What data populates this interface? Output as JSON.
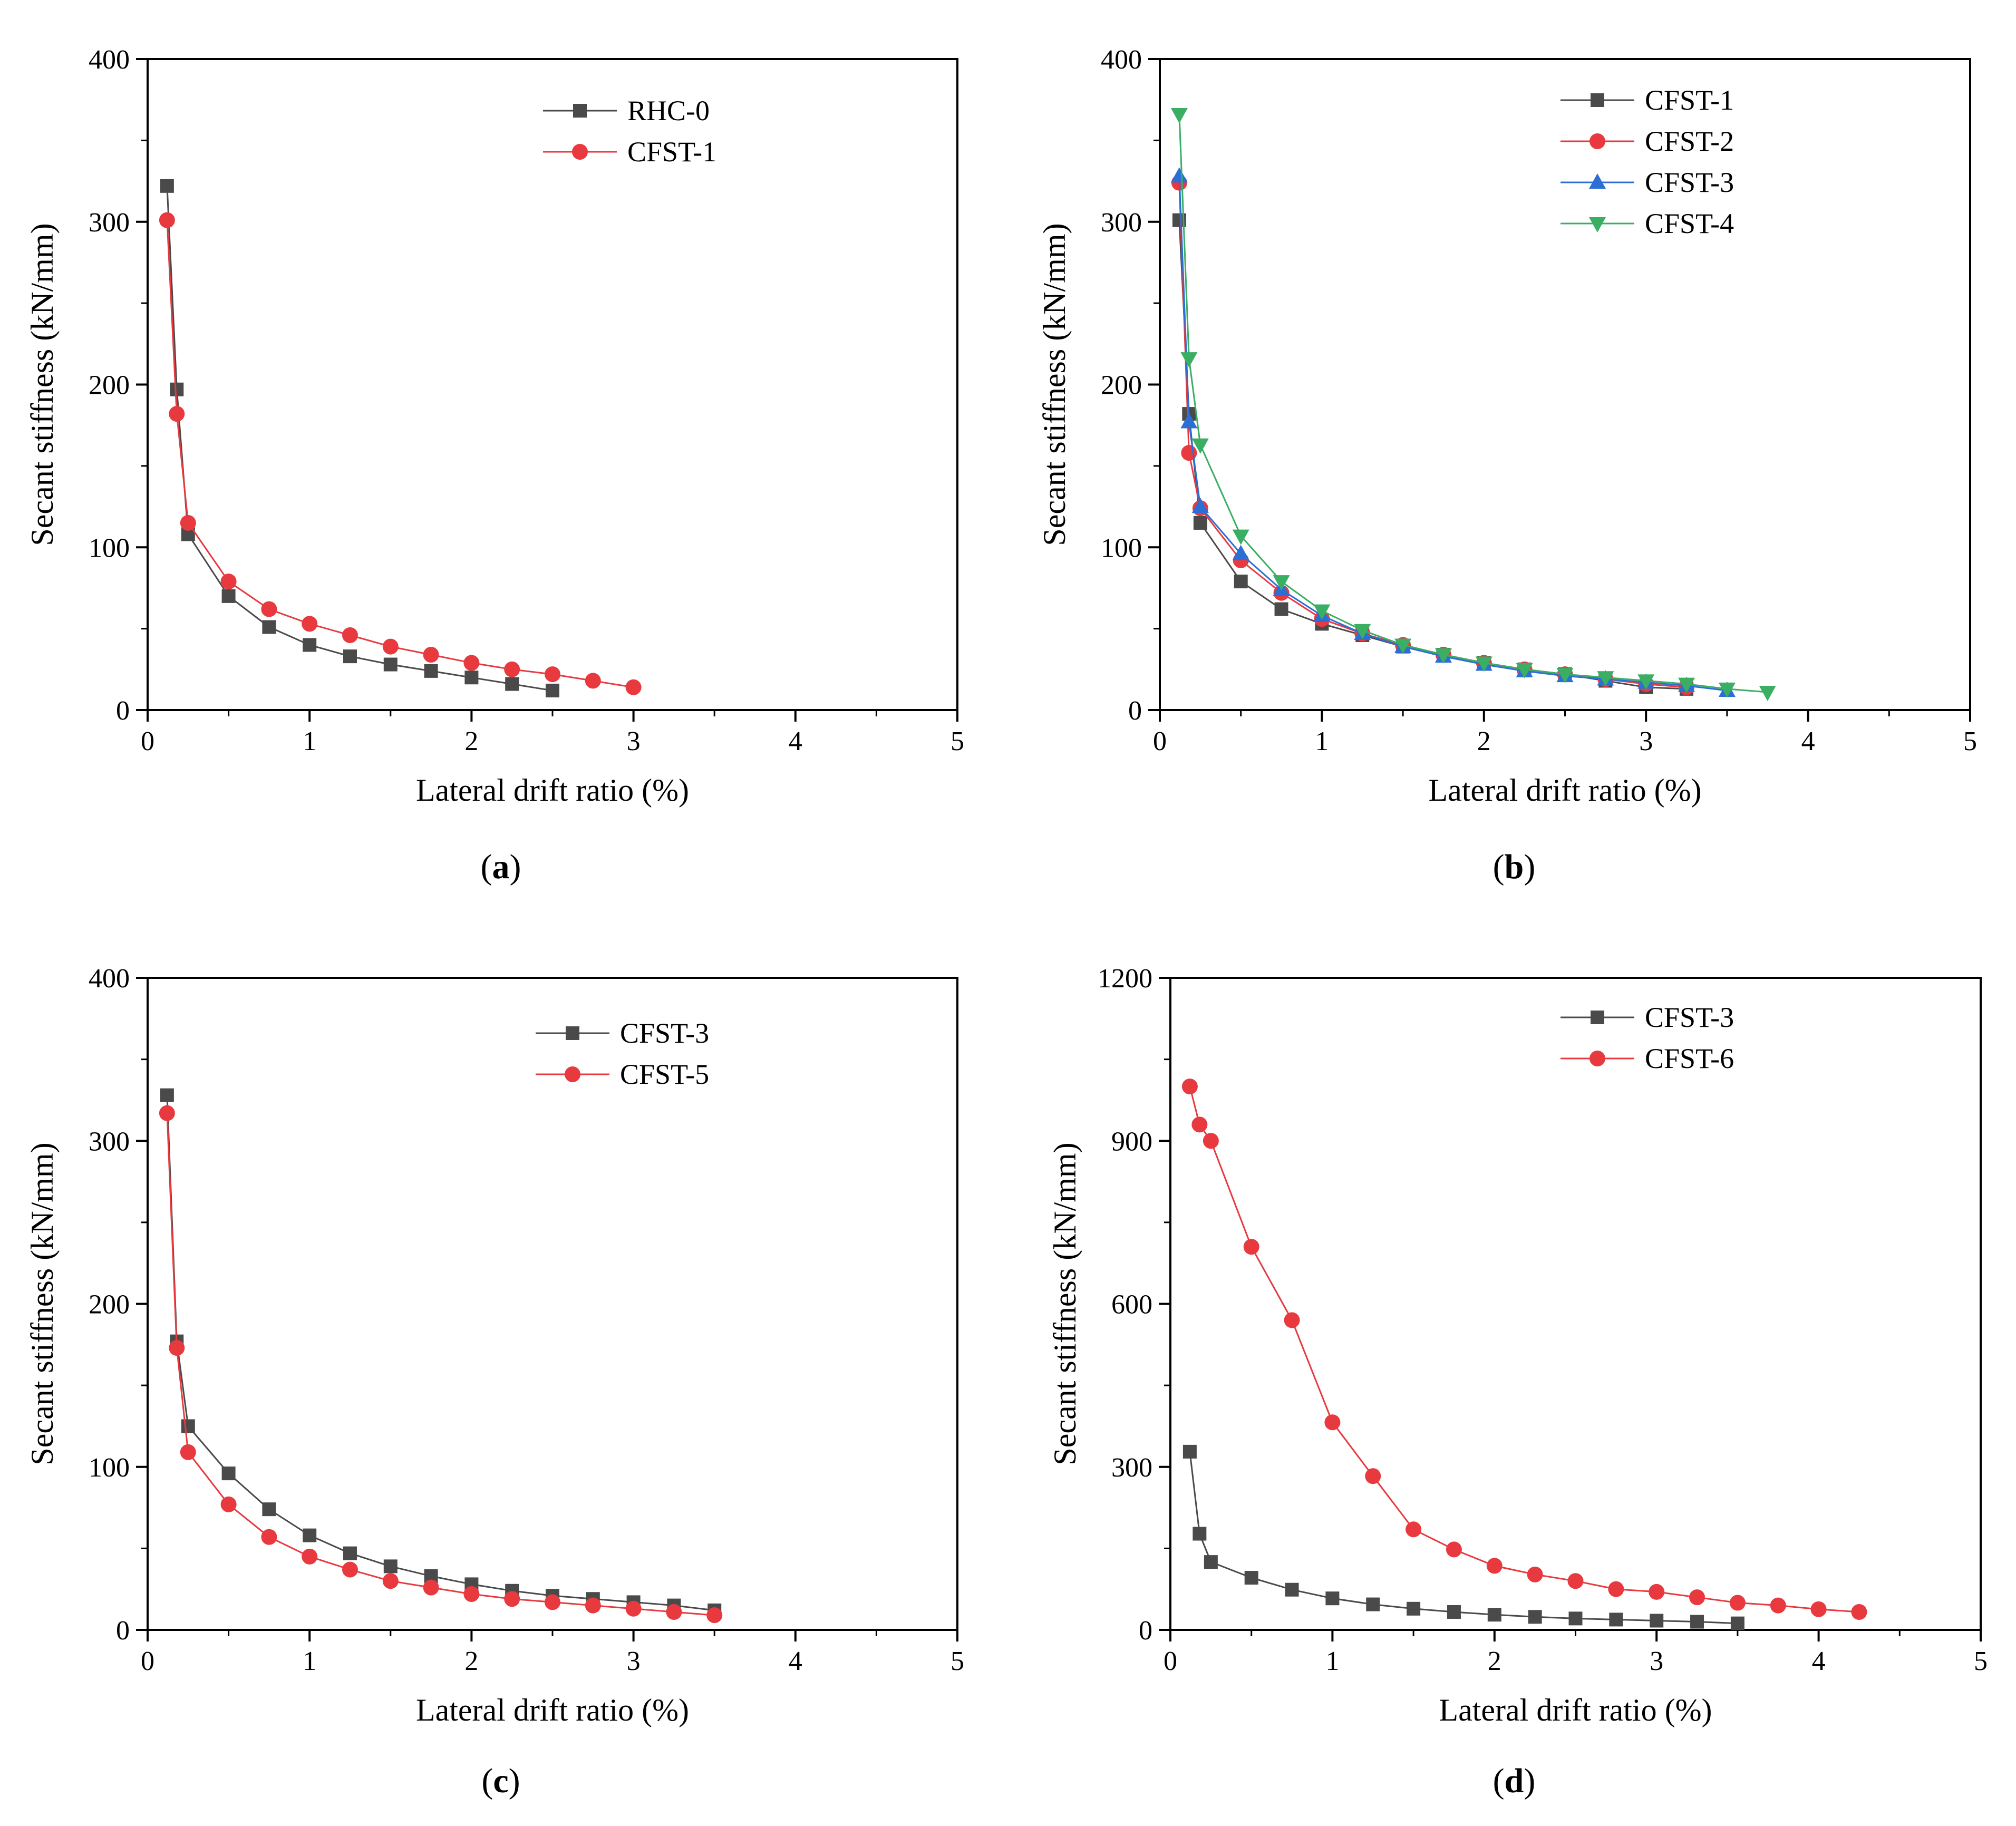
{
  "figure_title": "Secant stiffness vs lateral drift ratio",
  "colors": {
    "black": "#4a4a4a",
    "red": "#e8393f",
    "blue": "#2b6fd6",
    "green": "#3aae62"
  },
  "chart_data": [
    {
      "type": "line",
      "panel": "a",
      "panel_label": "a",
      "title": "",
      "xlabel": "Lateral drift ratio (%)",
      "ylabel": "Secant stiffness (kN/mm)",
      "xlim": [
        0,
        5
      ],
      "ylim": [
        0,
        400
      ],
      "xticks": [
        0,
        1,
        2,
        3,
        4,
        5
      ],
      "yticks": [
        0,
        100,
        200,
        300,
        400
      ],
      "legend_position": "top-right",
      "series": [
        {
          "name": "RHC-0",
          "marker": "square",
          "color": "#4a4a4a",
          "x": [
            0.12,
            0.18,
            0.25,
            0.5,
            0.75,
            1.0,
            1.25,
            1.5,
            1.75,
            2.0,
            2.25,
            2.5
          ],
          "y": [
            322,
            197,
            108,
            70,
            51,
            40,
            33,
            28,
            24,
            20,
            16,
            12
          ]
        },
        {
          "name": "CFST-1",
          "marker": "circle",
          "color": "#e8393f",
          "x": [
            0.12,
            0.18,
            0.25,
            0.5,
            0.75,
            1.0,
            1.25,
            1.5,
            1.75,
            2.0,
            2.25,
            2.5,
            2.75,
            3.0
          ],
          "y": [
            301,
            182,
            115,
            79,
            62,
            53,
            46,
            39,
            34,
            29,
            25,
            22,
            18,
            14
          ]
        }
      ]
    },
    {
      "type": "line",
      "panel": "b",
      "panel_label": "b",
      "title": "",
      "xlabel": "Lateral drift ratio (%)",
      "ylabel": "Secant stiffness (kN/mm)",
      "xlim": [
        0,
        5
      ],
      "ylim": [
        0,
        400
      ],
      "xticks": [
        0,
        1,
        2,
        3,
        4,
        5
      ],
      "yticks": [
        0,
        100,
        200,
        300,
        400
      ],
      "legend_position": "top-right",
      "series": [
        {
          "name": "CFST-1",
          "marker": "square",
          "color": "#4a4a4a",
          "x": [
            0.12,
            0.18,
            0.25,
            0.5,
            0.75,
            1.0,
            1.25,
            1.5,
            1.75,
            2.0,
            2.25,
            2.5,
            2.75,
            3.0,
            3.25
          ],
          "y": [
            301,
            182,
            115,
            79,
            62,
            53,
            46,
            39,
            34,
            29,
            25,
            22,
            18,
            14,
            13
          ]
        },
        {
          "name": "CFST-2",
          "marker": "circle",
          "color": "#e8393f",
          "x": [
            0.12,
            0.18,
            0.25,
            0.5,
            0.75,
            1.0,
            1.25,
            1.5,
            1.75,
            2.0,
            2.25,
            2.5,
            2.75,
            3.0,
            3.25
          ],
          "y": [
            324,
            158,
            124,
            92,
            72,
            56,
            47,
            40,
            34,
            29,
            25,
            22,
            19,
            16,
            14
          ]
        },
        {
          "name": "CFST-3",
          "marker": "triangle-up",
          "color": "#2b6fd6",
          "x": [
            0.12,
            0.18,
            0.25,
            0.5,
            0.75,
            1.0,
            1.25,
            1.5,
            1.75,
            2.0,
            2.25,
            2.5,
            2.75,
            3.0,
            3.25,
            3.5
          ],
          "y": [
            328,
            177,
            125,
            96,
            74,
            58,
            47,
            39,
            33,
            28,
            24,
            21,
            19,
            17,
            15,
            12
          ]
        },
        {
          "name": "CFST-4",
          "marker": "triangle-down",
          "color": "#3aae62",
          "x": [
            0.12,
            0.18,
            0.25,
            0.5,
            0.75,
            1.0,
            1.25,
            1.5,
            1.75,
            2.0,
            2.25,
            2.5,
            2.75,
            3.0,
            3.25,
            3.5,
            3.75
          ],
          "y": [
            366,
            216,
            163,
            107,
            79,
            61,
            49,
            40,
            34,
            29,
            25,
            22,
            20,
            18,
            16,
            13,
            11
          ]
        }
      ]
    },
    {
      "type": "line",
      "panel": "c",
      "panel_label": "c",
      "title": "",
      "xlabel": "Lateral drift ratio (%)",
      "ylabel": "Secant stiffness (kN/mm)",
      "xlim": [
        0,
        5
      ],
      "ylim": [
        0,
        400
      ],
      "xticks": [
        0,
        1,
        2,
        3,
        4,
        5
      ],
      "yticks": [
        0,
        100,
        200,
        300,
        400
      ],
      "legend_position": "top-right",
      "series": [
        {
          "name": "CFST-3",
          "marker": "square",
          "color": "#4a4a4a",
          "x": [
            0.12,
            0.18,
            0.25,
            0.5,
            0.75,
            1.0,
            1.25,
            1.5,
            1.75,
            2.0,
            2.25,
            2.5,
            2.75,
            3.0,
            3.25,
            3.5
          ],
          "y": [
            328,
            177,
            125,
            96,
            74,
            58,
            47,
            39,
            33,
            28,
            24,
            21,
            19,
            17,
            15,
            12
          ]
        },
        {
          "name": "CFST-5",
          "marker": "circle",
          "color": "#e8393f",
          "x": [
            0.12,
            0.18,
            0.25,
            0.5,
            0.75,
            1.0,
            1.25,
            1.5,
            1.75,
            2.0,
            2.25,
            2.5,
            2.75,
            3.0,
            3.25,
            3.5
          ],
          "y": [
            317,
            173,
            109,
            77,
            57,
            45,
            37,
            30,
            26,
            22,
            19,
            17,
            15,
            13,
            11,
            9
          ]
        }
      ]
    },
    {
      "type": "line",
      "panel": "d",
      "panel_label": "d",
      "title": "",
      "xlabel": "Lateral drift ratio (%)",
      "ylabel": "Secant stiffness (kN/mm)",
      "xlim": [
        0,
        5
      ],
      "ylim": [
        0,
        1200
      ],
      "xticks": [
        0,
        1,
        2,
        3,
        4,
        5
      ],
      "yticks": [
        0,
        300,
        600,
        900,
        1200
      ],
      "legend_position": "top-right",
      "series": [
        {
          "name": "CFST-3",
          "marker": "square",
          "color": "#4a4a4a",
          "x": [
            0.12,
            0.18,
            0.25,
            0.5,
            0.75,
            1.0,
            1.25,
            1.5,
            1.75,
            2.0,
            2.25,
            2.5,
            2.75,
            3.0,
            3.25,
            3.5
          ],
          "y": [
            328,
            177,
            125,
            96,
            74,
            58,
            47,
            39,
            33,
            28,
            24,
            21,
            19,
            17,
            15,
            12
          ]
        },
        {
          "name": "CFST-6",
          "marker": "circle",
          "color": "#e8393f",
          "x": [
            0.12,
            0.18,
            0.25,
            0.5,
            0.75,
            1.0,
            1.25,
            1.5,
            1.75,
            2.0,
            2.25,
            2.5,
            2.75,
            3.0,
            3.25,
            3.5,
            3.75,
            4.0,
            4.25
          ],
          "y": [
            1000,
            930,
            900,
            705,
            570,
            382,
            283,
            185,
            148,
            118,
            102,
            90,
            75,
            70,
            60,
            50,
            45,
            38,
            33
          ]
        }
      ]
    }
  ]
}
